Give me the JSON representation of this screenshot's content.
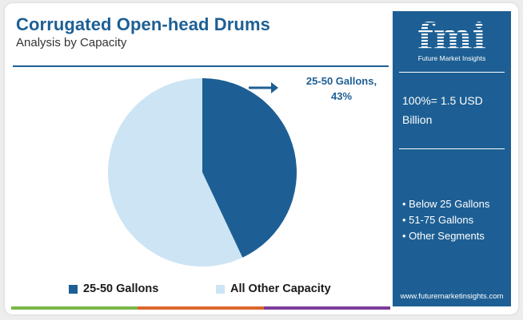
{
  "header": {
    "title": "Corrugated Open-head Drums",
    "subtitle": "Analysis by Capacity"
  },
  "chart_data": {
    "type": "pie",
    "labels": [
      "25-50 Gallons",
      "All Other Capacity"
    ],
    "values": [
      43,
      57
    ],
    "unit": "%",
    "colors": [
      "#1d5f94",
      "#cde4f4"
    ],
    "callout": {
      "label": "25-50 Gallons,",
      "value": "43%",
      "arrow_icon": "arrow-right-icon"
    },
    "legend": {
      "placement": "bottom",
      "items": [
        {
          "label": "25-50 Gallons",
          "color": "#1d5f94"
        },
        {
          "label": "All Other Capacity",
          "color": "#cde4f4"
        }
      ]
    }
  },
  "side_panel": {
    "brand_mark": "fmi",
    "brand_name": "Future Market Insights",
    "total_line1": "100%= 1.5 USD",
    "total_line2": "Billion",
    "segments": [
      "• Below 25 Gallons",
      "• 51-75 Gallons",
      "• Other Segments"
    ],
    "website": "www.futuremarketinsights.com",
    "background": "#1d5f94"
  },
  "footer_bar_colors": [
    "#7ab648",
    "#d9672c",
    "#7d3c98"
  ]
}
